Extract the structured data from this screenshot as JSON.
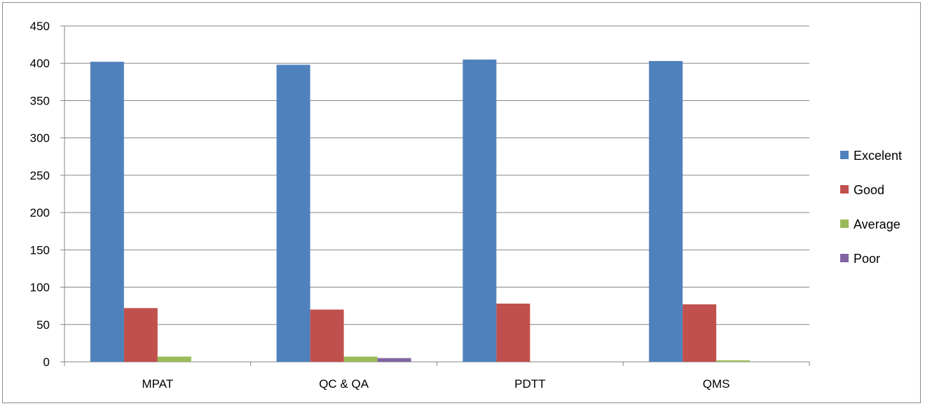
{
  "chart_data": {
    "type": "bar",
    "title": "",
    "xlabel": "",
    "ylabel": "",
    "categories": [
      "MPAT",
      "QC & QA",
      "PDTT",
      "QMS"
    ],
    "ylim": [
      0,
      450
    ],
    "yticks": [
      "0",
      "50",
      "100",
      "150",
      "200",
      "250",
      "300",
      "350",
      "400",
      "450"
    ],
    "grid": true,
    "legend_position": "right",
    "series": [
      {
        "name": "Excelent",
        "color": "#4f81bd",
        "values": [
          402,
          398,
          405,
          403
        ]
      },
      {
        "name": "Good",
        "color": "#c0504d",
        "values": [
          72,
          70,
          78,
          77
        ]
      },
      {
        "name": "Average",
        "color": "#9bbb59",
        "values": [
          7,
          7,
          0,
          2
        ]
      },
      {
        "name": "Poor",
        "color": "#8064a2",
        "values": [
          0,
          5,
          0,
          0
        ]
      }
    ]
  }
}
